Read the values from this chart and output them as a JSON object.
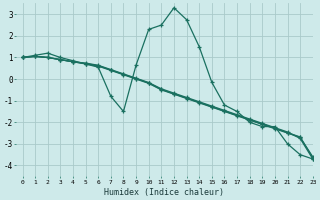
{
  "title": "",
  "xlabel": "Humidex (Indice chaleur)",
  "xlim": [
    -0.5,
    23
  ],
  "ylim": [
    -4.5,
    3.5
  ],
  "xticks": [
    0,
    1,
    2,
    3,
    4,
    5,
    6,
    7,
    8,
    9,
    10,
    11,
    12,
    13,
    14,
    15,
    16,
    17,
    18,
    19,
    20,
    21,
    22,
    23
  ],
  "yticks": [
    -4,
    -3,
    -2,
    -1,
    0,
    1,
    2,
    3
  ],
  "background_color": "#ceeaea",
  "grid_color": "#aacaca",
  "line_color": "#1a7060",
  "series": [
    [
      1.0,
      1.1,
      1.2,
      1.0,
      0.85,
      0.7,
      0.55,
      -0.8,
      -1.5,
      0.65,
      2.3,
      2.5,
      3.3,
      2.75,
      1.5,
      -0.15,
      -1.2,
      -1.5,
      -2.0,
      -2.2,
      -2.2,
      -3.0,
      -3.5,
      -3.7
    ],
    [
      1.0,
      1.05,
      1.0,
      0.9,
      0.8,
      0.7,
      0.6,
      0.4,
      0.2,
      0.0,
      -0.2,
      -0.5,
      -0.7,
      -0.9,
      -1.1,
      -1.3,
      -1.5,
      -1.7,
      -1.9,
      -2.1,
      -2.3,
      -2.5,
      -2.7,
      -3.6
    ],
    [
      1.0,
      1.05,
      1.0,
      0.9,
      0.8,
      0.72,
      0.62,
      0.42,
      0.22,
      0.02,
      -0.18,
      -0.48,
      -0.68,
      -0.88,
      -1.08,
      -1.28,
      -1.48,
      -1.68,
      -1.88,
      -2.08,
      -2.28,
      -2.48,
      -2.68,
      -3.65
    ],
    [
      1.0,
      1.05,
      1.0,
      0.9,
      0.8,
      0.74,
      0.64,
      0.44,
      0.24,
      0.04,
      -0.16,
      -0.45,
      -0.65,
      -0.85,
      -1.05,
      -1.25,
      -1.45,
      -1.65,
      -1.85,
      -2.05,
      -2.25,
      -2.45,
      -2.75,
      -3.7
    ]
  ]
}
